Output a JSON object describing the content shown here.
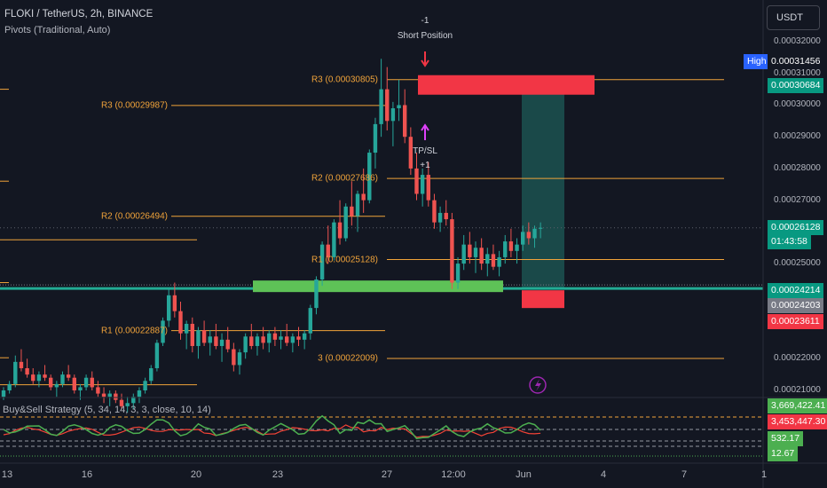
{
  "header": {
    "title": "FLOKI / TetherUS, 2h, BINANCE",
    "indicator": "Pivots (Traditional, Auto)"
  },
  "currency_button": "USDT",
  "oscillator_title": "Buy&Sell Strategy (5, 34, 14, 3, 3, close, 10, 14)",
  "colors": {
    "background": "#131722",
    "up": "#26a69a",
    "down": "#ef5350",
    "pivot": "#f0a33a",
    "tp_zone": "#1d5b57",
    "entry_line": "#22ab94",
    "entry_zone": "#5ec257",
    "sl_box": "#f23645",
    "osc_green": "#4caf50",
    "osc_red": "#f44336"
  },
  "chart_data": {
    "type": "candlestick",
    "symbol": "FLOKI / TetherUS",
    "interval": "2h",
    "exchange": "BINANCE",
    "y_ticks": [
      "0.00032000",
      "0.00031000",
      "0.00030000",
      "0.00029000",
      "0.00028000",
      "0.00027000",
      "0.00026000",
      "0.00025000",
      "0.00024000",
      "0.00023000",
      "0.00022000",
      "0.00021000"
    ],
    "x_ticks": [
      "13",
      "16",
      "20",
      "23",
      "27",
      "12:00",
      "Jun",
      "4",
      "7",
      "1"
    ],
    "price_tags": [
      {
        "label": "High",
        "value": "0.00031456",
        "bg": "#131722",
        "label_bg": "#2962ff"
      },
      {
        "value": "0.00030684",
        "bg": "#089981"
      },
      {
        "value": "0.00026128",
        "bg": "#089981",
        "sub": "01:43:58"
      },
      {
        "value": "0.00024214",
        "bg": "#089981"
      },
      {
        "value": "0.00024203",
        "bg": "#787b86"
      },
      {
        "value": "0.00023611",
        "bg": "#f23645"
      }
    ],
    "pivot_levels_old": [
      {
        "label": "R3 (0.00029987)",
        "value": 0.00029987
      },
      {
        "label": "R2 (0.00026494)",
        "value": 0.00026494
      },
      {
        "label": "R1 (0.00022887)",
        "value": 0.00022887
      }
    ],
    "pivot_levels_new": [
      {
        "label": "R3 (0.00030805)",
        "value": 0.00030805
      },
      {
        "label": "R2 (0.00027686)",
        "value": 0.00027686
      },
      {
        "label": "R1 (0.00025128)",
        "value": 0.00025128
      },
      {
        "label": "P (0.00022009)",
        "shown": "3 (0.00022009)",
        "value": 0.00022009
      }
    ],
    "annotations": {
      "short_top": "-1",
      "short_label": "Short Position",
      "tpsl": "TP/SL",
      "tpsl_bottom": "+1"
    },
    "trade": {
      "entry": 0.00024214,
      "stop": 0.00030684,
      "target": 0.00023611
    },
    "oscillator": {
      "tags": [
        {
          "value": "3,669,422.41",
          "bg": "#4caf50"
        },
        {
          "value": "3,453,447.30",
          "bg": "#f23645"
        },
        {
          "value": "532.17",
          "bg": "#4caf50"
        },
        {
          "value": "12.67",
          "bg": "#4caf50"
        }
      ]
    },
    "candles": [
      [
        0.000208,
        0.000211,
        0.000207,
        0.00021
      ],
      [
        0.00021,
        0.000213,
        0.000209,
        0.000212
      ],
      [
        0.000212,
        0.000221,
        0.000211,
        0.000219
      ],
      [
        0.000219,
        0.000223,
        0.000216,
        0.000217
      ],
      [
        0.000217,
        0.00022,
        0.000214,
        0.000215
      ],
      [
        0.000215,
        0.000217,
        0.000212,
        0.000213
      ],
      [
        0.000213,
        0.000216,
        0.000211,
        0.000215
      ],
      [
        0.000215,
        0.000218,
        0.000213,
        0.000214
      ],
      [
        0.000214,
        0.000215,
        0.00021,
        0.000211
      ],
      [
        0.000211,
        0.000213,
        0.000208,
        0.000212
      ],
      [
        0.000212,
        0.000216,
        0.000211,
        0.000215
      ],
      [
        0.000215,
        0.000218,
        0.000213,
        0.000214
      ],
      [
        0.000214,
        0.000215,
        0.000209,
        0.00021
      ],
      [
        0.00021,
        0.000212,
        0.000207,
        0.000211
      ],
      [
        0.000211,
        0.000215,
        0.00021,
        0.000214
      ],
      [
        0.000214,
        0.000216,
        0.00021,
        0.000211
      ],
      [
        0.000211,
        0.000213,
        0.000208,
        0.000209
      ],
      [
        0.000209,
        0.000211,
        0.000206,
        0.000208
      ],
      [
        0.000208,
        0.00021,
        0.000205,
        0.000209
      ],
      [
        0.000209,
        0.00021,
        0.000206,
        0.000207
      ],
      [
        0.000207,
        0.000209,
        0.000204,
        0.000205
      ],
      [
        0.000205,
        0.000208,
        0.000203,
        0.000206
      ],
      [
        0.000206,
        0.000209,
        0.000204,
        0.000208
      ],
      [
        0.000208,
        0.000211,
        0.000206,
        0.00021
      ],
      [
        0.00021,
        0.000214,
        0.000209,
        0.000213
      ],
      [
        0.000213,
        0.000218,
        0.000212,
        0.000217
      ],
      [
        0.000217,
        0.000226,
        0.000216,
        0.000225
      ],
      [
        0.000225,
        0.000233,
        0.000224,
        0.000232
      ],
      [
        0.000232,
        0.000242,
        0.00023,
        0.00024
      ],
      [
        0.00024,
        0.000244,
        0.000233,
        0.000235
      ],
      [
        0.000235,
        0.000238,
        0.000226,
        0.000228
      ],
      [
        0.000228,
        0.000232,
        0.000223,
        0.000231
      ],
      [
        0.000231,
        0.000233,
        0.000222,
        0.000224
      ],
      [
        0.000224,
        0.00023,
        0.00022,
        0.000229
      ],
      [
        0.000229,
        0.000232,
        0.000224,
        0.000225
      ],
      [
        0.000225,
        0.000229,
        0.000221,
        0.000227
      ],
      [
        0.000227,
        0.000231,
        0.000223,
        0.000224
      ],
      [
        0.000224,
        0.000228,
        0.000219,
        0.000226
      ],
      [
        0.000226,
        0.00023,
        0.000222,
        0.000223
      ],
      [
        0.000223,
        0.000225,
        0.000216,
        0.000218
      ],
      [
        0.000218,
        0.000223,
        0.000215,
        0.000222
      ],
      [
        0.000222,
        0.000228,
        0.00022,
        0.000227
      ],
      [
        0.000227,
        0.000231,
        0.000223,
        0.000224
      ],
      [
        0.000224,
        0.000228,
        0.000221,
        0.000227
      ],
      [
        0.000227,
        0.00023,
        0.000223,
        0.000225
      ],
      [
        0.000225,
        0.000229,
        0.000222,
        0.000228
      ],
      [
        0.000228,
        0.00023,
        0.000224,
        0.000226
      ],
      [
        0.000226,
        0.000229,
        0.000223,
        0.000227
      ],
      [
        0.000227,
        0.000231,
        0.000224,
        0.000225
      ],
      [
        0.000225,
        0.000228,
        0.000222,
        0.000227
      ],
      [
        0.000227,
        0.00023,
        0.000224,
        0.000226
      ],
      [
        0.000226,
        0.000229,
        0.000223,
        0.000228
      ],
      [
        0.000228,
        0.000237,
        0.000226,
        0.000236
      ],
      [
        0.000236,
        0.000246,
        0.000234,
        0.000245
      ],
      [
        0.000245,
        0.000257,
        0.000243,
        0.000256
      ],
      [
        0.000256,
        0.000262,
        0.00025,
        0.000252
      ],
      [
        0.000252,
        0.000264,
        0.000251,
        0.000263
      ],
      [
        0.000263,
        0.00027,
        0.000256,
        0.000258
      ],
      [
        0.000258,
        0.000269,
        0.000257,
        0.000268
      ],
      [
        0.000268,
        0.000276,
        0.000262,
        0.000265
      ],
      [
        0.000265,
        0.000273,
        0.00026,
        0.000272
      ],
      [
        0.000272,
        0.00028,
        0.000266,
        0.00027
      ],
      [
        0.00027,
        0.000286,
        0.000269,
        0.000285
      ],
      [
        0.000285,
        0.000296,
        0.00028,
        0.000294
      ],
      [
        0.000294,
        0.0003146,
        0.00029,
        0.000305
      ],
      [
        0.000305,
        0.000312,
        0.000292,
        0.000295
      ],
      [
        0.000295,
        0.000301,
        0.000287,
        0.000299
      ],
      [
        0.000299,
        0.000308,
        0.000295,
        0.0003
      ],
      [
        0.0003,
        0.000305,
        0.000288,
        0.00029
      ],
      [
        0.00029,
        0.000293,
        0.000278,
        0.00028
      ],
      [
        0.00028,
        0.000285,
        0.00027,
        0.000272
      ],
      [
        0.000272,
        0.00028,
        0.000268,
        0.000278
      ],
      [
        0.000278,
        0.000282,
        0.000268,
        0.00027
      ],
      [
        0.00027,
        0.000272,
        0.000261,
        0.000263
      ],
      [
        0.000263,
        0.000268,
        0.00026,
        0.000266
      ],
      [
        0.000266,
        0.00027,
        0.000262,
        0.000264
      ],
      [
        0.000264,
        0.000266,
        0.000242,
        0.000244
      ],
      [
        0.000244,
        0.000252,
        0.000242,
        0.00025
      ],
      [
        0.00025,
        0.000259,
        0.000248,
        0.000256
      ],
      [
        0.000256,
        0.00026,
        0.00025,
        0.000252
      ],
      [
        0.000252,
        0.000257,
        0.000247,
        0.000255
      ],
      [
        0.000255,
        0.000258,
        0.000248,
        0.00025
      ],
      [
        0.00025,
        0.000255,
        0.000246,
        0.000253
      ],
      [
        0.000253,
        0.000256,
        0.000248,
        0.000249
      ],
      [
        0.000249,
        0.000254,
        0.000246,
        0.000252
      ],
      [
        0.000252,
        0.000259,
        0.00025,
        0.000257
      ],
      [
        0.000257,
        0.000261,
        0.000252,
        0.000254
      ],
      [
        0.000254,
        0.000258,
        0.00025,
        0.000256
      ],
      [
        0.000256,
        0.000262,
        0.000254,
        0.00026
      ],
      [
        0.00026,
        0.000263,
        0.000256,
        0.000258
      ],
      [
        0.000258,
        0.000262,
        0.000255,
        0.000261
      ],
      [
        0.000261,
        0.000263,
        0.000258,
        0.0002613
      ]
    ]
  }
}
